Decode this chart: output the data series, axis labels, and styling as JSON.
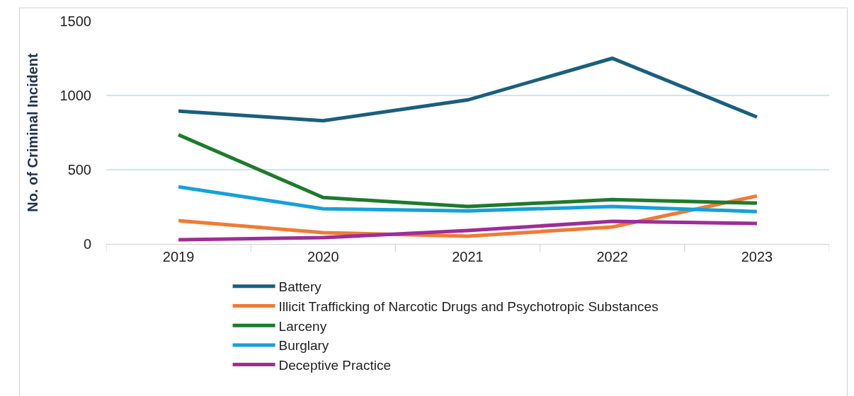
{
  "chart_data": {
    "type": "line",
    "ylabel": "No. of Criminal Incident",
    "categories": [
      "2019",
      "2020",
      "2021",
      "2022",
      "2023"
    ],
    "series": [
      {
        "name": "Battery",
        "color": "#1b5e7e",
        "values": [
          895,
          830,
          970,
          1250,
          855
        ]
      },
      {
        "name": "Illicit Trafficking of Narcotic Drugs and Psychotropic Substances",
        "color": "#ef7b34",
        "values": [
          157,
          76,
          52,
          114,
          323
        ]
      },
      {
        "name": "Larceny",
        "color": "#1e7a2e",
        "values": [
          735,
          313,
          252,
          299,
          275
        ]
      },
      {
        "name": "Burglary",
        "color": "#16a0d8",
        "values": [
          385,
          237,
          223,
          252,
          218
        ]
      },
      {
        "name": "Deceptive Practice",
        "color": "#9c2e97",
        "values": [
          28,
          43,
          90,
          152,
          138
        ]
      }
    ],
    "ylim": [
      0,
      1500
    ],
    "yticks": [
      0,
      500,
      1000,
      1500
    ],
    "grid": "y",
    "legend": "bottom",
    "marker": "none",
    "line_style": "solid"
  }
}
